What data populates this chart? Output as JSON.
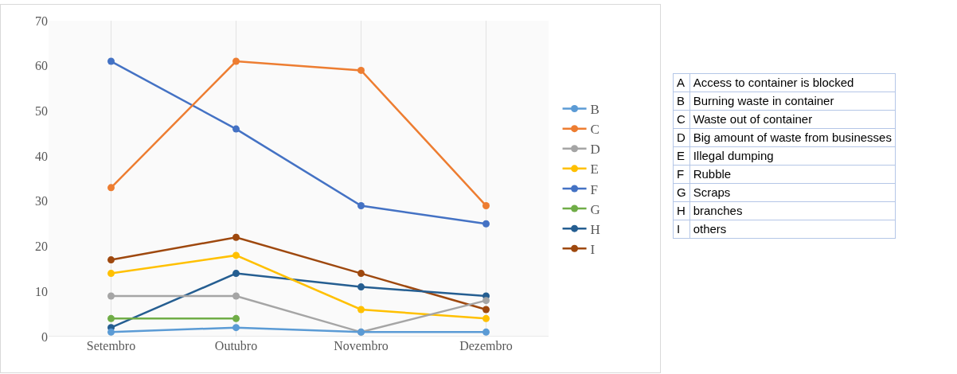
{
  "chart_data": {
    "type": "line",
    "categories": [
      "Setembro",
      "Outubro",
      "Novembro",
      "Dezembro"
    ],
    "series": [
      {
        "name": "B",
        "color": "#5b9bd5",
        "values": [
          1,
          2,
          1,
          1
        ]
      },
      {
        "name": "C",
        "color": "#ed7d31",
        "values": [
          33,
          61,
          59,
          29
        ]
      },
      {
        "name": "D",
        "color": "#a5a5a5",
        "values": [
          9,
          9,
          1,
          8
        ]
      },
      {
        "name": "E",
        "color": "#ffc000",
        "values": [
          14,
          18,
          6,
          4
        ]
      },
      {
        "name": "F",
        "color": "#4472c4",
        "values": [
          61,
          46,
          29,
          25
        ]
      },
      {
        "name": "G",
        "color": "#70ad47",
        "values": [
          4,
          4,
          null,
          null
        ]
      },
      {
        "name": "H",
        "color": "#255e91",
        "values": [
          2,
          14,
          11,
          9
        ]
      },
      {
        "name": "I",
        "color": "#9e480e",
        "values": [
          17,
          22,
          14,
          6
        ]
      }
    ],
    "ylim": [
      0,
      70
    ],
    "yticks": [
      0,
      10,
      20,
      30,
      40,
      50,
      60,
      70
    ],
    "grid": "x",
    "legend": "right",
    "marker": "circle",
    "line_style": "solid",
    "annotations": [
      "A Access to container is blocked",
      "B Burning waste in container",
      "C Waste out of container",
      "D Big amount of waste from businesses",
      "E Illegal dumping",
      "F Rubble",
      "G Scraps",
      "H branches",
      "I others"
    ]
  }
}
